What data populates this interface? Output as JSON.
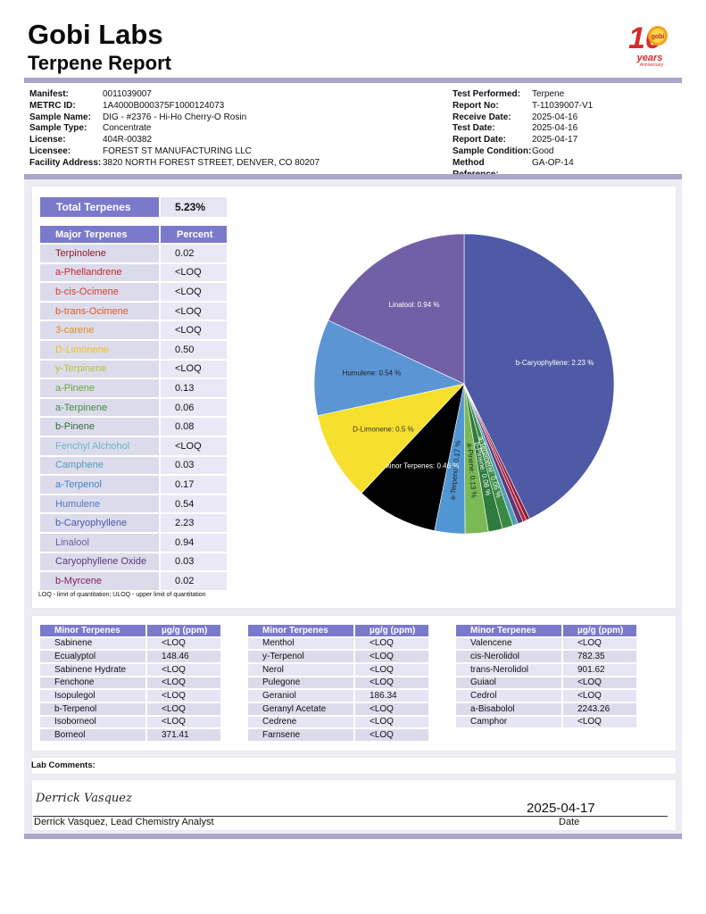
{
  "header": {
    "title": "Gobi Labs",
    "subtitle": "Terpene Report"
  },
  "logo": {
    "number": "10",
    "badge": "gobi",
    "line1": "years",
    "line2": "Anniversary"
  },
  "sample_info_left": [
    {
      "label": "Manifest:",
      "value": "0011039007"
    },
    {
      "label": "METRC ID:",
      "value": "1A4000B000375F1000124073"
    },
    {
      "label": "Sample Name:",
      "value": "DIG - #2376 - Hi-Ho Cherry-O Rosin"
    },
    {
      "label": "Sample Type:",
      "value": "Concentrate"
    },
    {
      "label": "License:",
      "value": "404R-00382"
    },
    {
      "label": "Licensee:",
      "value": "FOREST ST MANUFACTURING LLC"
    },
    {
      "label": "Facility Address:",
      "value": "3820 NORTH FOREST STREET, DENVER, CO 80207"
    }
  ],
  "sample_info_right": [
    {
      "label": "Test Performed:",
      "value": "Terpene"
    },
    {
      "label": "Report No:",
      "value": "T-11039007-V1"
    },
    {
      "label": "Receive Date:",
      "value": "2025-04-16"
    },
    {
      "label": "Test Date:",
      "value": "2025-04-16"
    },
    {
      "label": "Report Date:",
      "value": "2025-04-17"
    },
    {
      "label": "Sample Condition:",
      "value": "Good"
    },
    {
      "label": "Method Reference:",
      "value": "GA-OP-14"
    }
  ],
  "total": {
    "label": "Total Terpenes",
    "value": "5.23%"
  },
  "major": {
    "header_name": "Major Terpenes",
    "header_value": "Percent",
    "rows": [
      {
        "name": "Terpinolene",
        "value": "0.02",
        "color": "#8b1a2e"
      },
      {
        "name": "a-Phellandrene",
        "value": "<LOQ",
        "color": "#c8262d"
      },
      {
        "name": "b-cis-Ocimene",
        "value": "<LOQ",
        "color": "#d2412a"
      },
      {
        "name": "b-trans-Ocimene",
        "value": "<LOQ",
        "color": "#e05a2b"
      },
      {
        "name": "3-carene",
        "value": "<LOQ",
        "color": "#e58a1f"
      },
      {
        "name": "D-Limonene",
        "value": "0.50",
        "color": "#f0c419"
      },
      {
        "name": "y-Terpinene",
        "value": "<LOQ",
        "color": "#b8c43a"
      },
      {
        "name": "a-Pinene",
        "value": "0.13",
        "color": "#6aaa3a"
      },
      {
        "name": "a-Terpinene",
        "value": "0.06",
        "color": "#3e8c40"
      },
      {
        "name": "b-Pinene",
        "value": "0.08",
        "color": "#2e6e3a"
      },
      {
        "name": "Fenchyl Alchohol",
        "value": "<LOQ",
        "color": "#6ab7c9"
      },
      {
        "name": "Camphene",
        "value": "0.03",
        "color": "#4f9fb8"
      },
      {
        "name": "a-Terpenol",
        "value": "0.17",
        "color": "#3f85c8"
      },
      {
        "name": "Humulene",
        "value": "0.54",
        "color": "#4f79c8"
      },
      {
        "name": "b-Caryophyllene",
        "value": "2.23",
        "color": "#4b5bb0"
      },
      {
        "name": "Linalool",
        "value": "0.94",
        "color": "#6e5aa3"
      },
      {
        "name": "Caryophyllene Oxide",
        "value": "0.03",
        "color": "#5a3a78"
      },
      {
        "name": "b-Myrcene",
        "value": "0.02",
        "color": "#8b1a5e"
      }
    ]
  },
  "loq_note": "LOQ - limit of quantitation; ULOQ - upper limit of quantitation",
  "chart_data": {
    "type": "pie",
    "slices": [
      {
        "label": "b-Caryophyllene: 2.23 %",
        "value": 2.23,
        "color": "#4e5aa6",
        "text_color": "#ffffff"
      },
      {
        "label": "",
        "value": 0.02,
        "color": "#8a1c3c"
      },
      {
        "label": "",
        "value": 0.02,
        "color": "#b3223a"
      },
      {
        "label": "",
        "value": 0.03,
        "color": "#5a3a78"
      },
      {
        "label": "",
        "value": 0.03,
        "color": "#4f9fb8"
      },
      {
        "label": "a-Terpinene: 0.06 %",
        "value": 0.06,
        "color": "#3a8a45",
        "text_color": "#ffffff"
      },
      {
        "label": "b-Pinene: 0.08 %",
        "value": 0.08,
        "color": "#2f7a3d",
        "text_color": "#ffffff"
      },
      {
        "label": "a-Pinene: 0.13 %",
        "value": 0.13,
        "color": "#7ab956",
        "text_color": "#222222"
      },
      {
        "label": "a-Terpenol: 0.17 %",
        "value": 0.17,
        "color": "#5096d4",
        "text_color": "#222222"
      },
      {
        "label": "Minor Terpenes: 0.46 %",
        "value": 0.46,
        "color": "#000000",
        "text_color": "#ffffff"
      },
      {
        "label": "D-Limonene: 0.5 %",
        "value": 0.5,
        "color": "#f7df2d",
        "text_color": "#333333"
      },
      {
        "label": "Humulene: 0.54 %",
        "value": 0.54,
        "color": "#5b95d4",
        "text_color": "#222222"
      },
      {
        "label": "Linalool: 0.94 %",
        "value": 0.94,
        "color": "#7160a6",
        "text_color": "#ffffff"
      }
    ]
  },
  "minor_tables": [
    {
      "header_name": "Minor Terpenes",
      "header_value": "µg/g (ppm)",
      "rows": [
        {
          "name": "Sabinene",
          "value": "<LOQ"
        },
        {
          "name": "Ecualyptol",
          "value": "148.46"
        },
        {
          "name": "Sabinene Hydrate",
          "value": "<LOQ"
        },
        {
          "name": "Fenchone",
          "value": "<LOQ"
        },
        {
          "name": "Isopulegol",
          "value": "<LOQ"
        },
        {
          "name": "b-Terpenol",
          "value": "<LOQ"
        },
        {
          "name": "Isoborneol",
          "value": "<LOQ"
        },
        {
          "name": "Borneol",
          "value": "371.41"
        }
      ]
    },
    {
      "header_name": "Minor Terpenes",
      "header_value": "µg/g (ppm)",
      "rows": [
        {
          "name": "Menthol",
          "value": "<LOQ"
        },
        {
          "name": "y-Terpenol",
          "value": "<LOQ"
        },
        {
          "name": "Nerol",
          "value": "<LOQ"
        },
        {
          "name": "Pulegone",
          "value": "<LOQ"
        },
        {
          "name": "Geraniol",
          "value": "186.34"
        },
        {
          "name": "Geranyl Acetate",
          "value": "<LOQ"
        },
        {
          "name": "Cedrene",
          "value": "<LOQ"
        },
        {
          "name": "Farnsene",
          "value": "<LOQ"
        }
      ]
    },
    {
      "header_name": "Minor Terpenes",
      "header_value": "µg/g (ppm)",
      "rows": [
        {
          "name": "Valencene",
          "value": "<LOQ"
        },
        {
          "name": "cis-Nerolidol",
          "value": "782.35"
        },
        {
          "name": "trans-Nerolidol",
          "value": "901.62"
        },
        {
          "name": "Guiaol",
          "value": "<LOQ"
        },
        {
          "name": "Cedrol",
          "value": "<LOQ"
        },
        {
          "name": "a-Bisabolol",
          "value": "2243.26"
        },
        {
          "name": "Camphor",
          "value": "<LOQ"
        }
      ]
    }
  ],
  "comments": {
    "label": "Lab Comments:"
  },
  "signature": {
    "signed_text": "Derrick Vasquez",
    "name": "Derrick Vasquez, Lead Chemistry Analyst",
    "date": "2025-04-17",
    "date_label": "Date"
  },
  "colors": {
    "accent": "#7b79cb",
    "bar": "#a9a6c9",
    "row": "#dcdbeb"
  }
}
